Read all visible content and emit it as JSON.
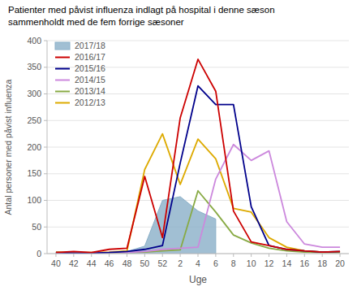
{
  "chart_data": {
    "type": "line",
    "title": "Patienter med påvist influenza indlagt på hospital i denne sæson",
    "subtitle": "sammenholdt med de fem forrige sæsoner",
    "x_label": "Uge",
    "y_label": "Antal personer med påvist influenza",
    "categories": [
      "40",
      "42",
      "44",
      "46",
      "48",
      "50",
      "52",
      "2",
      "4",
      "6",
      "8",
      "10",
      "12",
      "14",
      "16",
      "18",
      "20"
    ],
    "ylim": [
      0,
      400
    ],
    "yticks": [
      0,
      50,
      100,
      150,
      200,
      250,
      300,
      350,
      400
    ],
    "grid": true,
    "legend": "upper left",
    "series": [
      {
        "name": "2017/18",
        "type": "area",
        "color": "#8aafc8",
        "values": [
          2,
          1,
          1,
          2,
          4,
          14,
          100,
          107,
          80,
          65,
          null,
          null,
          null,
          null,
          null,
          null,
          null
        ]
      },
      {
        "name": "2016/17",
        "color": "#cc0000",
        "values": [
          2,
          4,
          2,
          8,
          10,
          145,
          30,
          255,
          365,
          305,
          80,
          22,
          15,
          8,
          5,
          3,
          4
        ]
      },
      {
        "name": "2015/16",
        "color": "#00008b",
        "values": [
          2,
          1,
          1,
          2,
          4,
          8,
          15,
          170,
          315,
          280,
          280,
          88,
          15,
          8,
          5,
          3,
          4
        ]
      },
      {
        "name": "2014/15",
        "color": "#cc88dd",
        "values": [
          1,
          1,
          1,
          2,
          2,
          4,
          8,
          10,
          12,
          140,
          205,
          175,
          193,
          60,
          18,
          12,
          12
        ]
      },
      {
        "name": "2013/14",
        "color": "#88aa44",
        "values": [
          1,
          1,
          1,
          1,
          2,
          3,
          5,
          7,
          118,
          78,
          35,
          20,
          10,
          5,
          3,
          2,
          2
        ]
      },
      {
        "name": "2012/13",
        "color": "#ddaa00",
        "values": [
          3,
          2,
          2,
          3,
          5,
          158,
          225,
          130,
          215,
          178,
          85,
          78,
          30,
          12,
          5,
          3,
          3
        ]
      }
    ]
  }
}
